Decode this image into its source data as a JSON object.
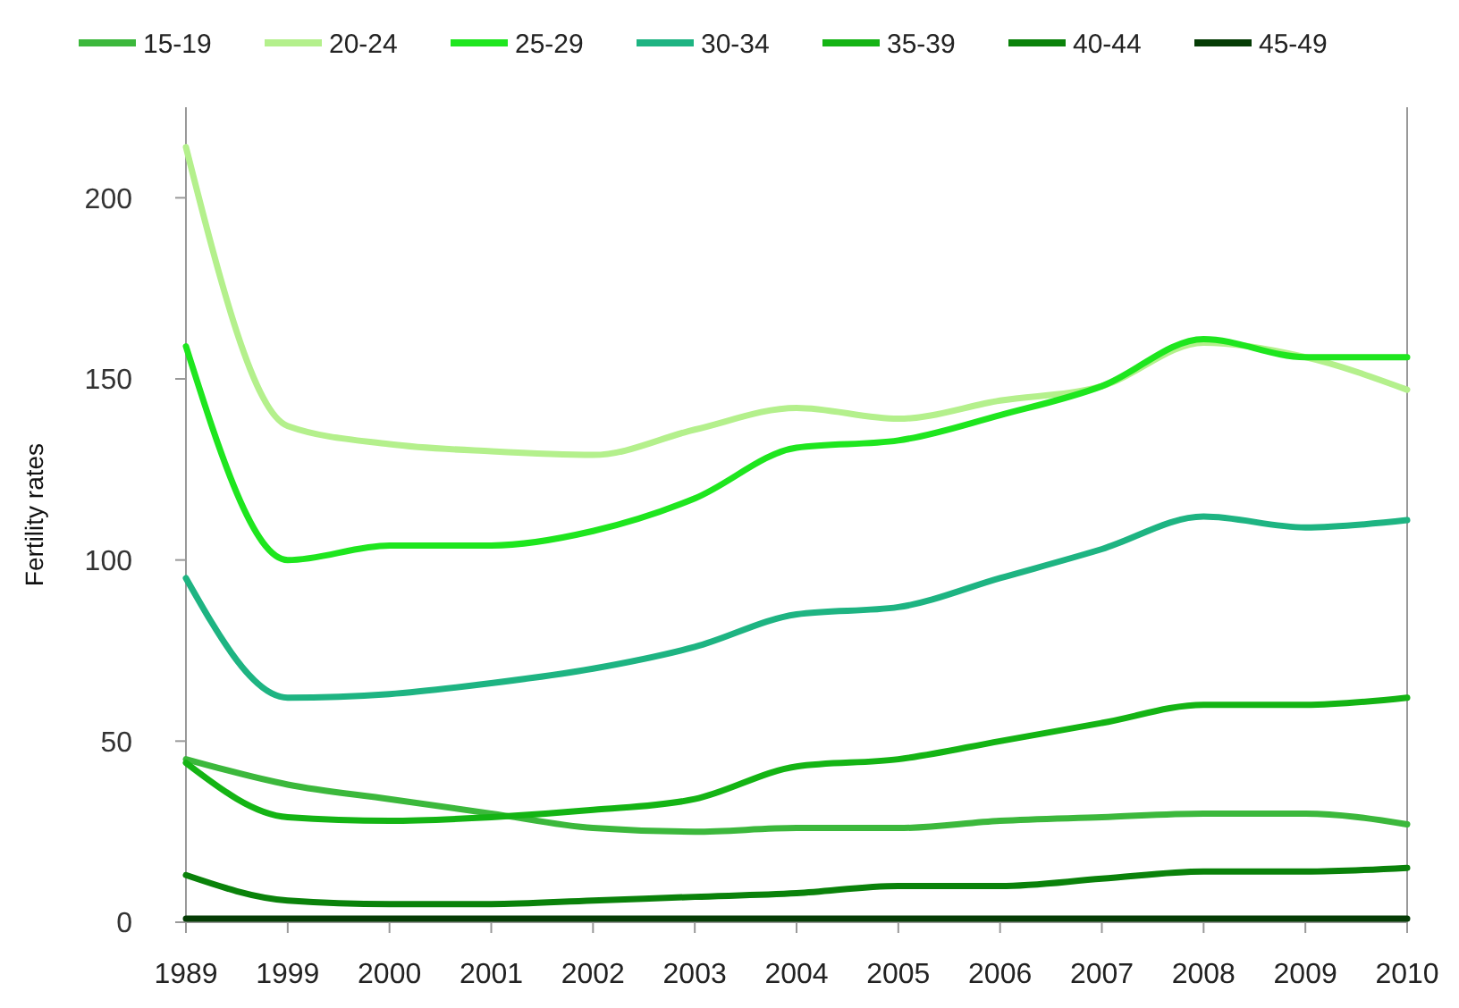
{
  "chart_data": {
    "type": "line",
    "ylabel": "Fertility rates",
    "categories": [
      "1989",
      "1999",
      "2000",
      "2001",
      "2002",
      "2003",
      "2004",
      "2005",
      "2006",
      "2007",
      "2008",
      "2009",
      "2010"
    ],
    "series": [
      {
        "name": "15-19",
        "color": "#3cb83c",
        "values": [
          45,
          38,
          34,
          30,
          26,
          25,
          26,
          26,
          28,
          29,
          30,
          30,
          27
        ]
      },
      {
        "name": "20-24",
        "color": "#b4f08c",
        "values": [
          214,
          137,
          132,
          130,
          129,
          136,
          142,
          139,
          144,
          148,
          160,
          156,
          147
        ]
      },
      {
        "name": "25-29",
        "color": "#1ee61e",
        "values": [
          159,
          100,
          104,
          104,
          108,
          117,
          131,
          133,
          140,
          148,
          161,
          156,
          156
        ]
      },
      {
        "name": "30-34",
        "color": "#1eb482",
        "values": [
          95,
          62,
          63,
          66,
          70,
          76,
          85,
          87,
          95,
          103,
          112,
          109,
          111
        ]
      },
      {
        "name": "35-39",
        "color": "#14b414",
        "values": [
          44,
          29,
          28,
          29,
          31,
          34,
          43,
          45,
          50,
          55,
          60,
          60,
          62
        ]
      },
      {
        "name": "40-44",
        "color": "#0a820a",
        "values": [
          13,
          6,
          5,
          5,
          6,
          7,
          8,
          10,
          10,
          12,
          14,
          14,
          15
        ]
      },
      {
        "name": "45-49",
        "color": "#053c05",
        "values": [
          1,
          1,
          1,
          1,
          1,
          1,
          1,
          1,
          1,
          1,
          1,
          1,
          1
        ]
      }
    ],
    "ylim": [
      0,
      225
    ],
    "yticks": [
      0,
      50,
      100,
      150,
      200
    ],
    "legend": "top",
    "grid": false,
    "marker": "none",
    "line_style": "solid"
  }
}
